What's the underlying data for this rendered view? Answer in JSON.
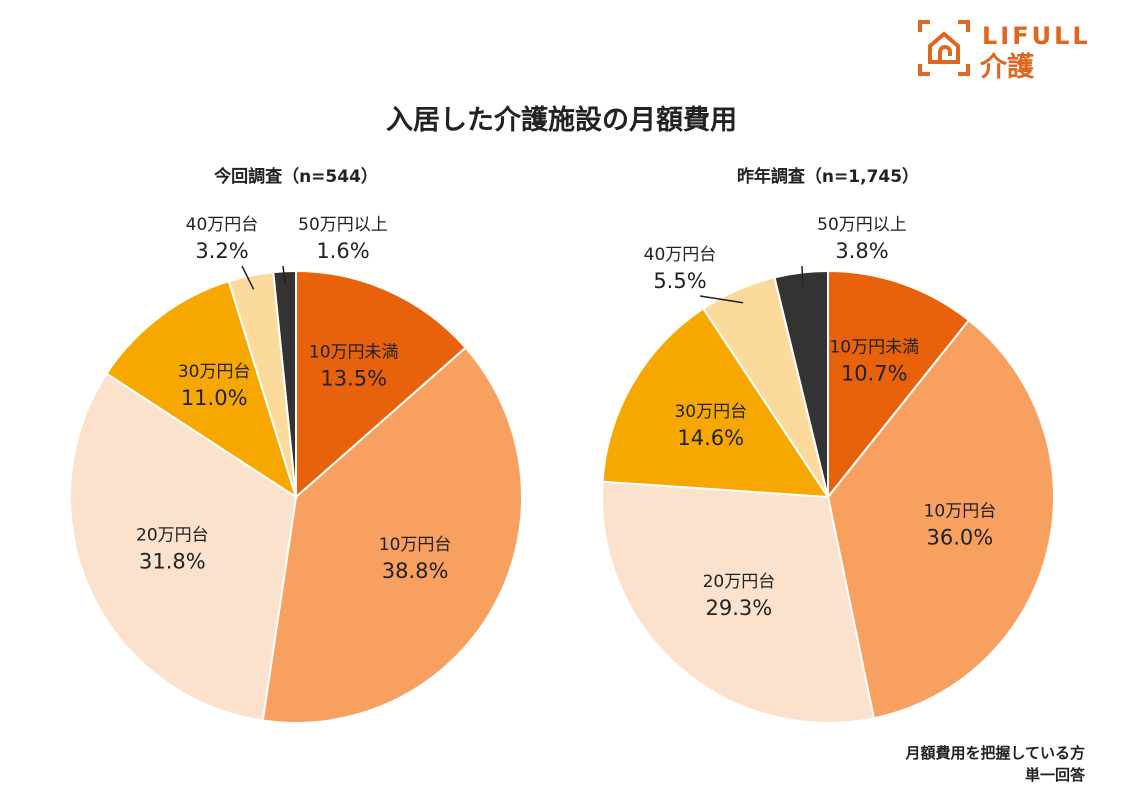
{
  "title": "入居した介護施設の月額費用",
  "logo": {
    "brand": "LIFULL",
    "sub": "介護",
    "color": "#E0661F"
  },
  "note": {
    "line1": "月額費用を把握している方",
    "line2": "単一回答"
  },
  "colors": {
    "10万円未満": "#E8620C",
    "10万円台": "#F8A060",
    "20万円台": "#FCE1CC",
    "30万円台": "#F6A800",
    "40万円台": "#FBDA9C",
    "50万円以上": "#333333"
  },
  "chart_data": [
    {
      "type": "pie",
      "title": "今回調査（n=544）",
      "categories": [
        "10万円未満",
        "10万円台",
        "20万円台",
        "30万円台",
        "40万円台",
        "50万円以上"
      ],
      "values": [
        13.5,
        38.8,
        31.8,
        11.0,
        3.2,
        1.6
      ],
      "labels": [
        "13.5%",
        "38.8%",
        "31.8%",
        "11.0%",
        "3.2%",
        "1.6%"
      ],
      "direction": "clockwise",
      "start": "12 o'clock"
    },
    {
      "type": "pie",
      "title": "昨年調査（n=1,745）",
      "categories": [
        "10万円未満",
        "10万円台",
        "20万円台",
        "30万円台",
        "40万円台",
        "50万円以上"
      ],
      "values": [
        10.7,
        36.0,
        29.3,
        14.6,
        5.5,
        3.8
      ],
      "labels": [
        "10.7%",
        "36.0%",
        "29.3%",
        "14.6%",
        "5.5%",
        "3.8%"
      ],
      "direction": "clockwise",
      "start": "12 o'clock"
    }
  ]
}
